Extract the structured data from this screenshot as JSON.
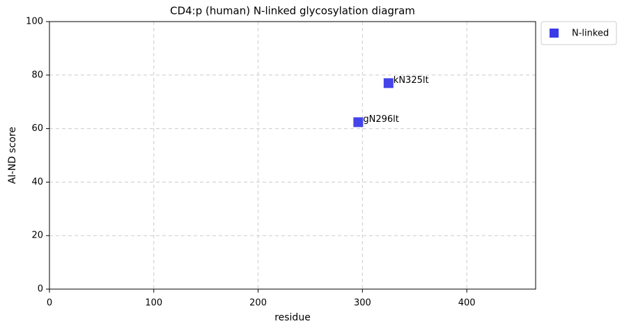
{
  "chart_data": {
    "type": "scatter",
    "title": "CD4:p (human) N-linked glycosylation diagram",
    "xlabel": "residue",
    "ylabel": "AI-ND score",
    "series": [
      {
        "name": "N-linked",
        "color": "#3a3ae8",
        "x": [
          296,
          325
        ],
        "values": [
          62.4,
          77
        ],
        "labels": [
          "gN296lt",
          "kN325lt"
        ]
      }
    ],
    "xlim": [
      0,
      466
    ],
    "xticks": [
      0,
      100,
      200,
      300,
      400
    ],
    "ylim": [
      0,
      100
    ],
    "yticks": [
      0,
      20,
      40,
      60,
      80,
      100
    ],
    "grid": true,
    "legend": "outside-upper-right"
  }
}
